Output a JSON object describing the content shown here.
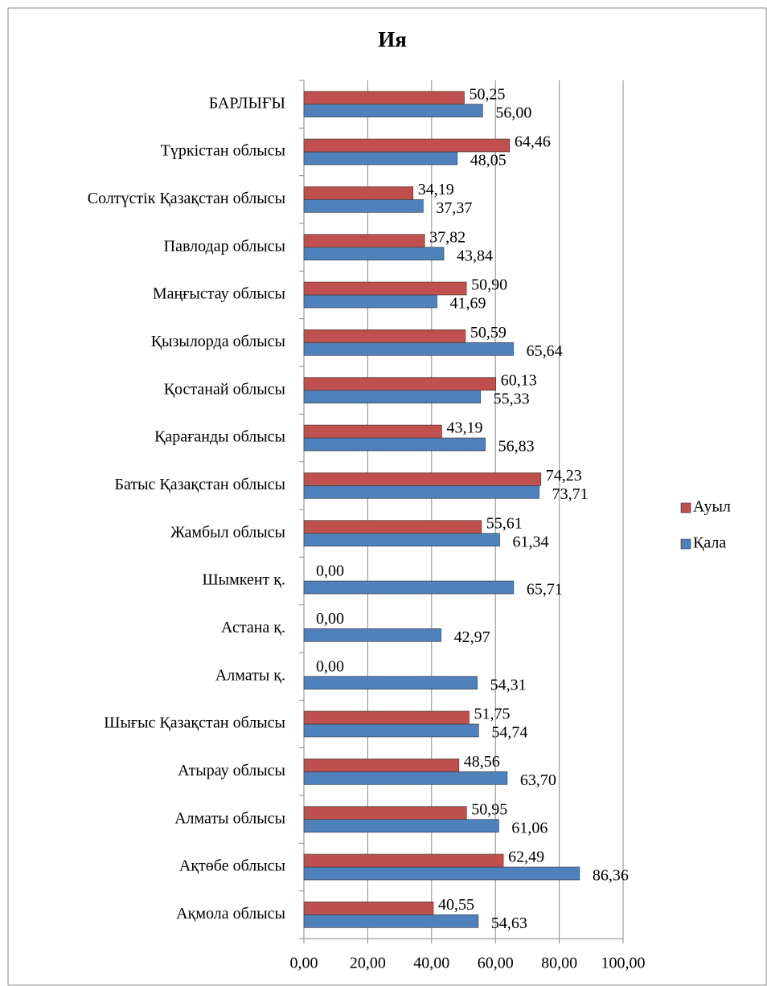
{
  "chart_data": {
    "type": "bar",
    "orientation": "horizontal",
    "title": "Ия",
    "categories": [
      "Ақмола облысы",
      "Ақтөбе облысы",
      "Алматы облысы",
      "Атырау облысы",
      "Шығыс Қазақстан облысы",
      "Алматы қ.",
      "Астана қ.",
      "Шымкент қ.",
      "Жамбыл облысы",
      "Батыс Қазақстан облысы",
      "Қарағанды облысы",
      "Қостанай облысы",
      "Қызылорда облысы",
      "Маңғыстау облысы",
      "Павлодар облысы",
      "Солтүстік Қазақстан облысы",
      "Түркістан облысы",
      "БАРЛЫҒЫ"
    ],
    "series": [
      {
        "name": "Қала",
        "color": "#4f81bd",
        "values": [
          54.63,
          86.36,
          61.06,
          63.7,
          54.74,
          54.31,
          42.97,
          65.71,
          61.34,
          73.71,
          56.83,
          55.33,
          65.64,
          41.69,
          43.84,
          37.37,
          48.05,
          56.0
        ],
        "value_labels": [
          "54,63",
          "86,36",
          "61,06",
          "63,70",
          "54,74",
          "54,31",
          "42,97",
          "65,71",
          "61,34",
          "73,71",
          "56,83",
          "55,33",
          "65,64",
          "41,69",
          "43,84",
          "37,37",
          "48,05",
          "56,00"
        ]
      },
      {
        "name": "Ауыл",
        "color": "#c0504d",
        "values": [
          40.55,
          62.49,
          50.95,
          48.56,
          51.75,
          0,
          0,
          0,
          55.61,
          74.23,
          43.19,
          60.13,
          50.59,
          50.9,
          37.82,
          34.19,
          64.46,
          50.25
        ],
        "value_labels": [
          "40,55",
          "62,49",
          "50,95",
          "48,56",
          "51,75",
          "0,00",
          "0,00",
          "0,00",
          "55,61",
          "74,23",
          "43,19",
          "60,13",
          "50,59",
          "50,90",
          "37,82",
          "34,19",
          "64,46",
          "50,25"
        ]
      }
    ],
    "xlim": [
      0,
      100
    ],
    "xticks": [
      {
        "value": 0,
        "label": "0,00"
      },
      {
        "value": 20,
        "label": "20,00"
      },
      {
        "value": 40,
        "label": "40,00"
      },
      {
        "value": 60,
        "label": "60,00"
      },
      {
        "value": 80,
        "label": "80,00"
      },
      {
        "value": 100,
        "label": "100,00"
      }
    ],
    "grid": true,
    "legend": "right"
  }
}
